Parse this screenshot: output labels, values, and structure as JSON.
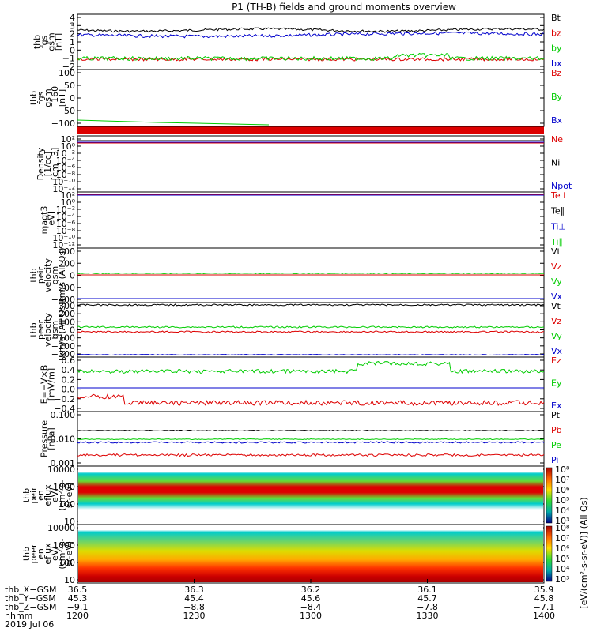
{
  "title": "P1 (TH-B) fields and ground moments overview",
  "colors": {
    "black": "#000000",
    "red": "#dd0000",
    "green": "#00cc00",
    "blue": "#0000cc"
  },
  "panels": [
    {
      "id": "fgs",
      "label": [
        "thb",
        "fgs",
        "gsm",
        "[nT]"
      ],
      "ticks": [
        "4",
        "3",
        "2",
        "1",
        "0",
        "−1",
        "−2"
      ],
      "legend": [
        {
          "text": "Bt",
          "color": "#000000"
        },
        {
          "text": "bz",
          "color": "#dd0000"
        },
        {
          "text": "by",
          "color": "#00cc00"
        },
        {
          "text": "bx",
          "color": "#0000cc"
        }
      ]
    },
    {
      "id": "fgs_dc",
      "label": [
        "thb",
        "fgs",
        "gsm",
        "−160",
        "[nT]"
      ],
      "ticks": [
        "100",
        "50",
        "0",
        "−50",
        "−100"
      ],
      "legend": [
        {
          "text": "Bz",
          "color": "#dd0000"
        },
        {
          "text": "By",
          "color": "#00cc00"
        },
        {
          "text": "Bx",
          "color": "#0000cc"
        }
      ]
    },
    {
      "id": "density",
      "label": [
        "Density",
        "[1/cc]",
        "[cm−3]"
      ],
      "ticks": [
        "10²",
        "10⁰",
        "10⁻²",
        "10⁻⁴",
        "10⁻⁶",
        "10⁻⁸",
        "10⁻¹⁰",
        "10⁻¹²"
      ],
      "legend": [
        {
          "text": "Ne",
          "color": "#dd0000"
        },
        {
          "text": "Ni",
          "color": "#000000"
        },
        {
          "text": "Npot",
          "color": "#0000cc"
        }
      ]
    },
    {
      "id": "temp",
      "label": [
        "magt3",
        "[eV]"
      ],
      "ticks": [
        "10²",
        "10⁰",
        "10⁻²",
        "10⁻⁴",
        "10⁻⁶",
        "10⁻⁸",
        "10⁻¹⁰",
        "10⁻¹²"
      ],
      "legend": [
        {
          "text": "Te⊥",
          "color": "#dd0000"
        },
        {
          "text": "Te∥",
          "color": "#000000"
        },
        {
          "text": "Ti⊥",
          "color": "#0000cc"
        },
        {
          "text": "Ti∥",
          "color": "#00cc00"
        }
      ]
    },
    {
      "id": "peir_vel",
      "label": [
        "thb",
        "peir",
        "velocity",
        "gsm",
        "km/s (All Qs)"
      ],
      "ticks": [
        "400",
        "200",
        "0",
        "−200",
        "−400"
      ],
      "legend": [
        {
          "text": "Vt",
          "color": "#000000"
        },
        {
          "text": "Vz",
          "color": "#dd0000"
        },
        {
          "text": "Vy",
          "color": "#00cc00"
        },
        {
          "text": "Vx",
          "color": "#0000cc"
        }
      ]
    },
    {
      "id": "peer_vel",
      "label": [
        "thb",
        "peer",
        "velocity",
        "gsm",
        "[km/s (All Qs)]"
      ],
      "ticks": [
        "300",
        "200",
        "100",
        "0",
        "−100",
        "−200",
        "−300"
      ],
      "legend": [
        {
          "text": "Vt",
          "color": "#000000"
        },
        {
          "text": "Vz",
          "color": "#dd0000"
        },
        {
          "text": "Vy",
          "color": "#00cc00"
        },
        {
          "text": "Vx",
          "color": "#0000cc"
        }
      ]
    },
    {
      "id": "efield",
      "label": [
        "E=−V×B",
        "[mV/m]"
      ],
      "ticks": [
        "0.6",
        "0.4",
        "0.2",
        "0.0",
        "−0.2",
        "−0.4"
      ],
      "legend": [
        {
          "text": "Ez",
          "color": "#dd0000"
        },
        {
          "text": "Ey",
          "color": "#00cc00"
        },
        {
          "text": "Ex",
          "color": "#0000cc"
        }
      ]
    },
    {
      "id": "pressure",
      "label": [
        "Pressure",
        "[nPa]"
      ],
      "ticks": [
        "0.100",
        "0.010",
        "0.001"
      ],
      "legend": [
        {
          "text": "Pt",
          "color": "#000000"
        },
        {
          "text": "Pb",
          "color": "#dd0000"
        },
        {
          "text": "Pe",
          "color": "#00cc00"
        },
        {
          "text": "Pi",
          "color": "#0000cc"
        }
      ]
    },
    {
      "id": "peir_spec",
      "label": [
        "thb",
        "peir",
        "en",
        "eflux",
        "eV/",
        "(cm²-s-",
        "sr-eV)"
      ],
      "ticks": [
        "10000",
        "1000",
        "100",
        "10"
      ],
      "legend": []
    },
    {
      "id": "peer_spec",
      "label": [
        "thb",
        "peer",
        "en",
        "eflux",
        "eV/",
        "(cm²-s-",
        "sr-eV)"
      ],
      "ticks": [
        "10000",
        "1000",
        "100",
        "10"
      ],
      "legend": []
    }
  ],
  "colorbar": {
    "ticks": [
      "10⁸",
      "10⁷",
      "10⁶",
      "10⁵",
      "10⁴",
      "10³"
    ],
    "label": "[eV/(cm²-s-sr-eV)] (All Qs)",
    "ticks2": [
      "10⁸",
      "10⁷",
      "10⁶",
      "10⁵",
      "10⁴",
      "10³"
    ]
  },
  "xaxis": {
    "rowlabels": [
      "thb_X−GSM",
      "thb_Y−GSM",
      "thb_Z−GSM",
      "hhmm",
      "2019 Jul 06"
    ],
    "columns": [
      [
        "36.5",
        "45.3",
        "−9.1",
        "1200"
      ],
      [
        "36.3",
        "45.4",
        "−8.8",
        "1230"
      ],
      [
        "36.2",
        "45.6",
        "−8.4",
        "1300"
      ],
      [
        "36.1",
        "45.7",
        "−7.8",
        "1330"
      ],
      [
        "35.9",
        "45.8",
        "−7.1",
        "1400"
      ]
    ]
  }
}
